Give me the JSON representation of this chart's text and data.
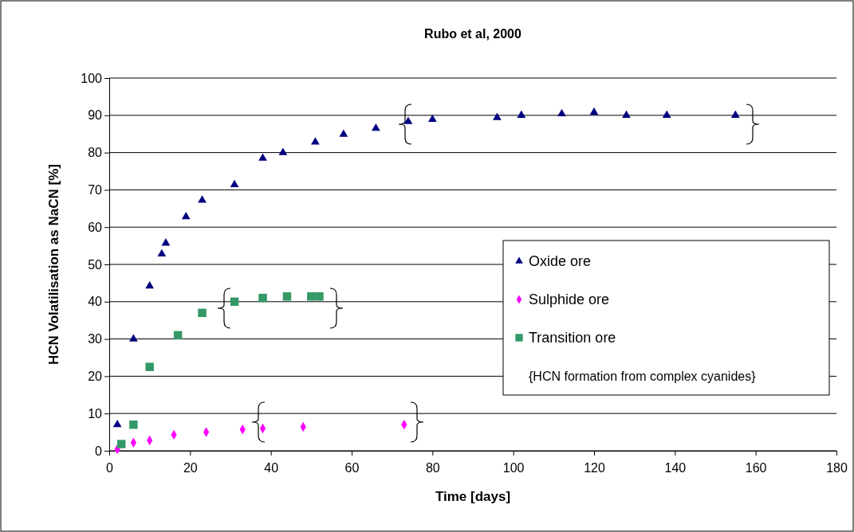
{
  "chart_data": {
    "type": "scatter",
    "title": "Rubo et al, 2000",
    "xlabel": "Time [days]",
    "ylabel": "HCN Volatilisation as NaCN [%]",
    "xlim": [
      0,
      180
    ],
    "xticks": [
      0,
      20,
      40,
      60,
      80,
      100,
      120,
      140,
      160,
      180
    ],
    "ylim": [
      0,
      100
    ],
    "yticks": [
      0,
      10,
      20,
      30,
      40,
      50,
      60,
      70,
      80,
      90,
      100
    ],
    "grid": "y",
    "legend": "right",
    "annotations": [
      "{HCN formation from complex cyanides}"
    ],
    "series": [
      {
        "name": "Oxide ore",
        "color": "#000080",
        "marker": "triangle",
        "x": [
          2,
          6,
          10,
          13,
          14,
          19,
          23,
          31,
          38,
          43,
          51,
          58,
          66,
          74,
          80,
          96,
          102,
          112,
          120,
          128,
          138,
          155
        ],
        "values": [
          7,
          30,
          44.2,
          52.8,
          55.7,
          62.8,
          67.2,
          71.4,
          78.5,
          80,
          82.8,
          84.9,
          86.5,
          88.3,
          88.9,
          89.4,
          90,
          90.4,
          90.8,
          90,
          90,
          90
        ]
      },
      {
        "name": "Sulphide ore",
        "color": "#ff00ff",
        "marker": "diamond",
        "x": [
          2,
          6,
          10,
          16,
          24,
          33,
          38,
          48,
          73
        ],
        "values": [
          0.4,
          2.2,
          2.8,
          4.3,
          5,
          5.7,
          6,
          6.4,
          7
        ]
      },
      {
        "name": "Transition ore",
        "color": "#339966",
        "marker": "square",
        "x": [
          3,
          6,
          10,
          17,
          23,
          31,
          38,
          44,
          50,
          52
        ],
        "values": [
          1.8,
          7,
          22.5,
          31,
          37,
          40,
          41,
          41.4,
          41.4,
          41.4
        ]
      }
    ]
  }
}
